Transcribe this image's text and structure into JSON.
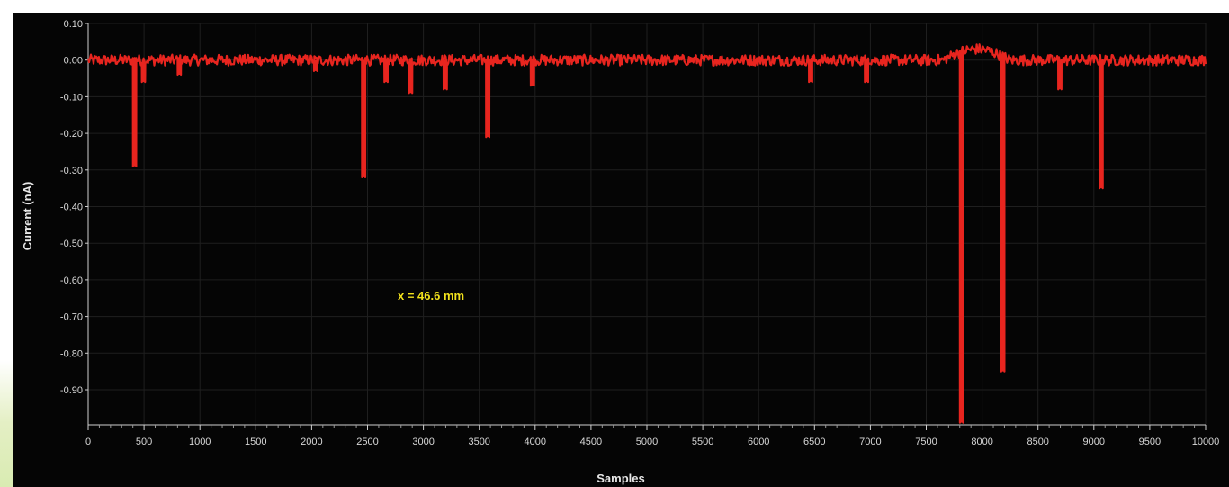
{
  "chart_data": {
    "type": "line",
    "xlabel": "Samples",
    "ylabel": "Current (nA)",
    "xlim": [
      0,
      10000
    ],
    "ylim": [
      -1.0,
      0.1
    ],
    "x_ticks": [
      0,
      500,
      1000,
      1500,
      2000,
      2500,
      3000,
      3500,
      4000,
      4500,
      5000,
      5500,
      6000,
      6500,
      7000,
      7500,
      8000,
      8500,
      9000,
      9500,
      10000
    ],
    "y_ticks": [
      0.1,
      0.0,
      -0.1,
      -0.2,
      -0.3,
      -0.4,
      -0.5,
      -0.6,
      -0.7,
      -0.8,
      -0.9
    ],
    "y_tick_labels": [
      "0.10",
      "0.00",
      "-0.10",
      "-0.20",
      "-0.30",
      "-0.40",
      "-0.50",
      "-0.60",
      "-0.70",
      "-0.80",
      "-0.90"
    ],
    "grid": true,
    "annotation": "x = 46.6 mm",
    "series": [
      {
        "color": "#e8251f",
        "baseline": 0.0,
        "events": [
          {
            "x": 400,
            "y": -0.29
          },
          {
            "x": 480,
            "y": -0.06
          },
          {
            "x": 800,
            "y": -0.04
          },
          {
            "x": 2020,
            "y": -0.03
          },
          {
            "x": 2450,
            "y": -0.32
          },
          {
            "x": 2650,
            "y": -0.06
          },
          {
            "x": 2870,
            "y": -0.09
          },
          {
            "x": 3180,
            "y": -0.08
          },
          {
            "x": 3560,
            "y": -0.21
          },
          {
            "x": 3960,
            "y": -0.07
          },
          {
            "x": 6450,
            "y": -0.06
          },
          {
            "x": 6950,
            "y": -0.06
          },
          {
            "x": 7800,
            "y": -0.99
          },
          {
            "x": 8170,
            "y": -0.85
          },
          {
            "x": 8680,
            "y": -0.08
          },
          {
            "x": 9050,
            "y": -0.35
          }
        ]
      }
    ]
  }
}
